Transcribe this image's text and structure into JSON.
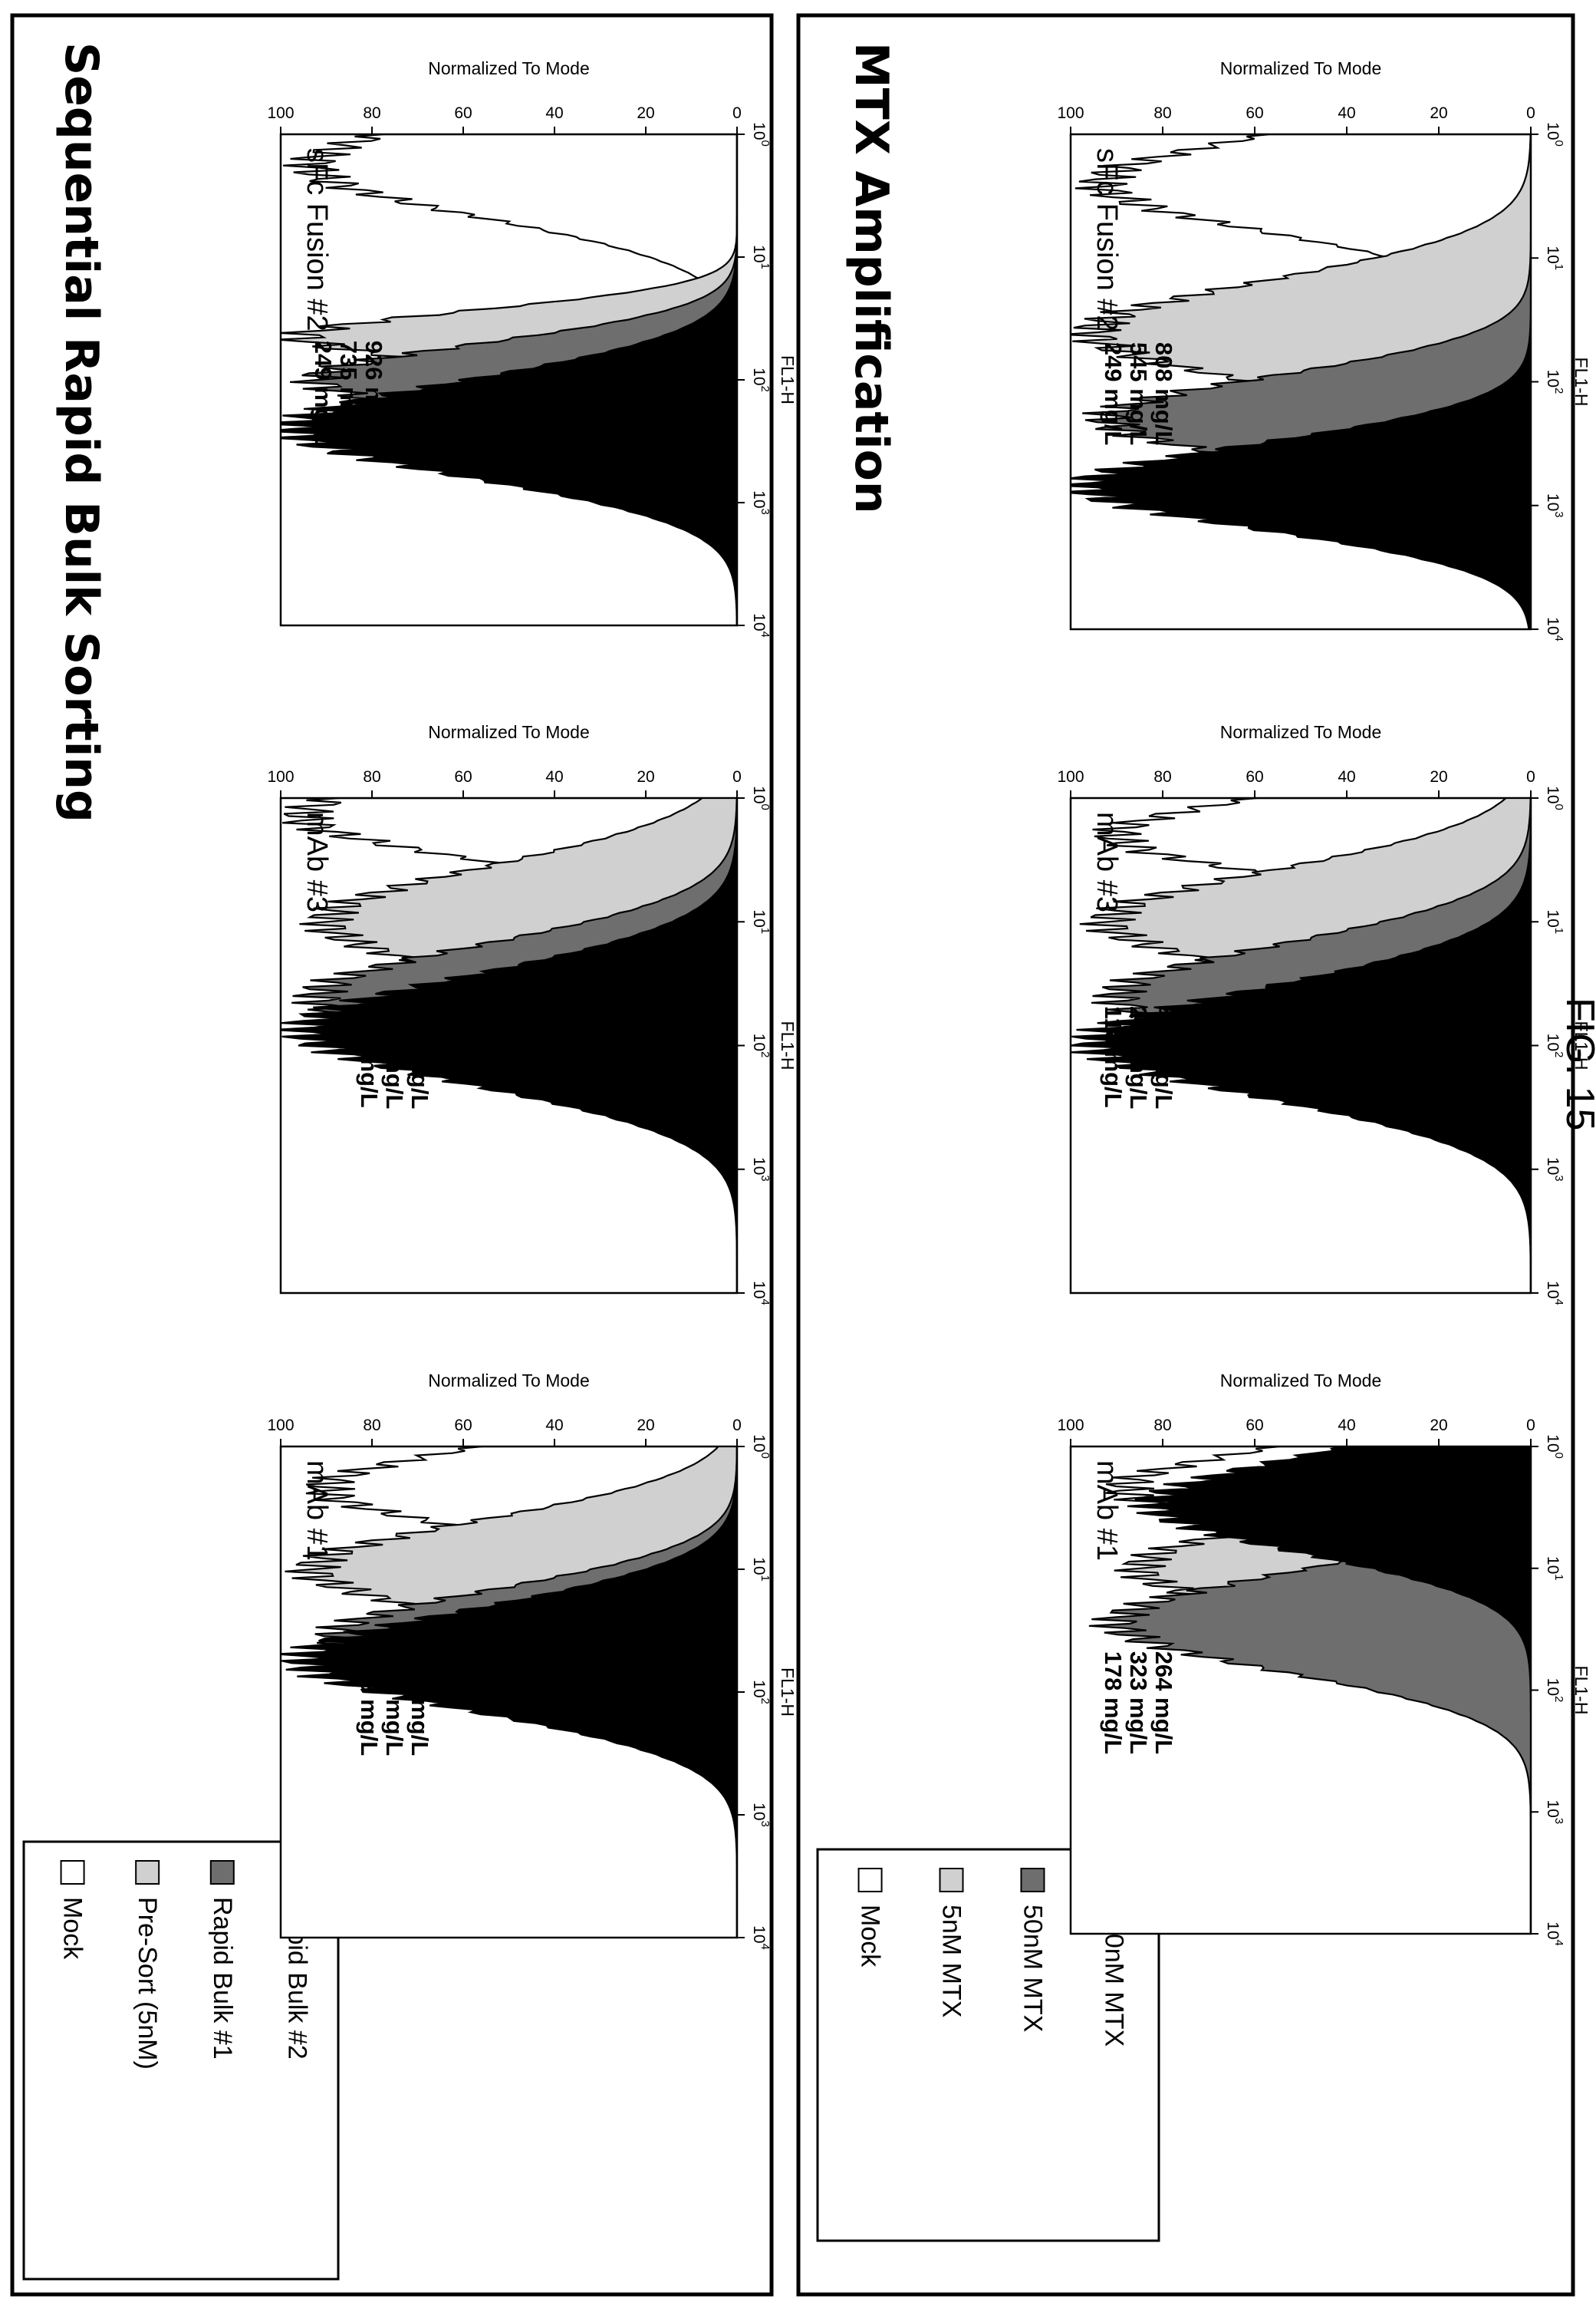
{
  "figure_label": "FIG. 15",
  "chart_data": [
    {
      "section": "Sequential Rapid Bulk Sorting",
      "type": "area",
      "legend": [
        {
          "label": "Mock",
          "color": "#ffffff"
        },
        {
          "label": "Pre-Sort (5nM)",
          "color": "#d0d0d0"
        },
        {
          "label": "Rapid Bulk #1",
          "color": "#6e6e6e"
        },
        {
          "label": "Rapid Bulk #2",
          "color": "#000000"
        }
      ],
      "panels": [
        {
          "title": "sFc Fusion #2",
          "annotations": [
            "249 mg/L",
            "735 mg/L",
            "926 mg/L"
          ],
          "xlabel": "FL1-H",
          "ylabel": "Normalized To Mode",
          "xscale": "log",
          "xlim": [
            1,
            10000
          ],
          "ylim": [
            0,
            100
          ],
          "xticks": [
            "10",
            "10",
            "10",
            "10",
            "10"
          ],
          "xtick_exps": [
            "0",
            "1",
            "2",
            "3",
            "4"
          ],
          "yticks": [
            "0",
            "20",
            "40",
            "60",
            "80",
            "100"
          ],
          "series": [
            {
              "name": "Mock",
              "color": "#ffffff",
              "peak_x": 1.8,
              "width": 0.42,
              "peak_y": 93
            },
            {
              "name": "Pre-Sort (5nM)",
              "color": "#d0d0d0",
              "peak_x": 45,
              "width": 0.22,
              "peak_y": 95
            },
            {
              "name": "Rapid Bulk #1",
              "color": "#6e6e6e",
              "peak_x": 100,
              "width": 0.3,
              "peak_y": 92
            },
            {
              "name": "Rapid Bulk #2",
              "color": "#000000",
              "peak_x": 250,
              "width": 0.4,
              "peak_y": 97
            }
          ]
        },
        {
          "title": "mAb #3",
          "annotations": [
            "118 mg/L",
            "285 mg/L",
            "571 mg/L"
          ],
          "xlabel": "FL1-H",
          "ylabel": "Normalized To Mode",
          "xscale": "log",
          "xlim": [
            1,
            10000
          ],
          "ylim": [
            0,
            100
          ],
          "xticks": [
            "10",
            "10",
            "10",
            "10",
            "10"
          ],
          "xtick_exps": [
            "0",
            "1",
            "2",
            "3",
            "4"
          ],
          "yticks": [
            "0",
            "20",
            "40",
            "60",
            "80",
            "100"
          ],
          "series": [
            {
              "name": "Mock",
              "color": "#ffffff",
              "peak_x": 1.4,
              "width": 0.35,
              "peak_y": 95
            },
            {
              "name": "Pre-Sort (5nM)",
              "color": "#d0d0d0",
              "peak_x": 10,
              "width": 0.45,
              "peak_y": 90
            },
            {
              "name": "Rapid Bulk #1",
              "color": "#6e6e6e",
              "peak_x": 40,
              "width": 0.42,
              "peak_y": 92
            },
            {
              "name": "Rapid Bulk #2",
              "color": "#000000",
              "peak_x": 75,
              "width": 0.45,
              "peak_y": 95
            }
          ]
        },
        {
          "title": "mAb #1",
          "annotations": [
            "178 mg/L",
            "355 mg/L",
            "429 mg/L"
          ],
          "xlabel": "FL1-H",
          "ylabel": "Normalized To Mode",
          "xscale": "log",
          "xlim": [
            1,
            10000
          ],
          "ylim": [
            0,
            100
          ],
          "xticks": [
            "10",
            "10",
            "10",
            "10",
            "10"
          ],
          "xtick_exps": [
            "0",
            "1",
            "2",
            "3",
            "4"
          ],
          "yticks": [
            "0",
            "20",
            "40",
            "60",
            "80",
            "100"
          ],
          "series": [
            {
              "name": "Mock",
              "color": "#ffffff",
              "peak_x": 2.2,
              "width": 0.35,
              "peak_y": 90
            },
            {
              "name": "Pre-Sort (5nM)",
              "color": "#d0d0d0",
              "peak_x": 10,
              "width": 0.4,
              "peak_y": 93
            },
            {
              "name": "Rapid Bulk #1",
              "color": "#6e6e6e",
              "peak_x": 35,
              "width": 0.38,
              "peak_y": 88
            },
            {
              "name": "Rapid Bulk #2",
              "color": "#000000",
              "peak_x": 55,
              "width": 0.42,
              "peak_y": 95
            }
          ]
        }
      ]
    },
    {
      "section": "MTX Amplification",
      "type": "area",
      "legend": [
        {
          "label": "Mock",
          "color": "#ffffff"
        },
        {
          "label": "5nM MTX",
          "color": "#d0d0d0"
        },
        {
          "label": "50nM MTX",
          "color": "#6e6e6e"
        },
        {
          "label": "250nM MTX",
          "color": "#000000"
        }
      ],
      "panels": [
        {
          "title": "sFc Fusion #2",
          "annotations": [
            "249 mg/L",
            "545 mg/L",
            "808 mg/L"
          ],
          "xlabel": "FL1-H",
          "ylabel": "Normalized To Mode",
          "xscale": "log",
          "xlim": [
            1,
            10000
          ],
          "ylim": [
            0,
            100
          ],
          "xticks": [
            "10",
            "10",
            "10",
            "10",
            "10"
          ],
          "xtick_exps": [
            "0",
            "1",
            "2",
            "3",
            "4"
          ],
          "yticks": [
            "0",
            "20",
            "40",
            "60",
            "80",
            "100"
          ],
          "series": [
            {
              "name": "Mock",
              "color": "#ffffff",
              "peak_x": 2.5,
              "width": 0.4,
              "peak_y": 93
            },
            {
              "name": "5nM MTX",
              "color": "#d0d0d0",
              "peak_x": 40,
              "width": 0.42,
              "peak_y": 95
            },
            {
              "name": "50nM MTX",
              "color": "#6e6e6e",
              "peak_x": 200,
              "width": 0.35,
              "peak_y": 92
            },
            {
              "name": "250nM MTX",
              "color": "#000000",
              "peak_x": 700,
              "width": 0.35,
              "peak_y": 97
            }
          ]
        },
        {
          "title": "mAb #3",
          "annotations": [
            "118 mg/L",
            "275 mg/L",
            "446 mg/L"
          ],
          "xlabel": "FL1-H",
          "ylabel": "Normalized To Mode",
          "xscale": "log",
          "xlim": [
            1,
            10000
          ],
          "ylim": [
            0,
            100
          ],
          "xticks": [
            "10",
            "10",
            "10",
            "10",
            "10"
          ],
          "xtick_exps": [
            "0",
            "1",
            "2",
            "3",
            "4"
          ],
          "yticks": [
            "0",
            "20",
            "40",
            "60",
            "80",
            "100"
          ],
          "series": [
            {
              "name": "Mock",
              "color": "#ffffff",
              "peak_x": 2.0,
              "width": 0.33,
              "peak_y": 90
            },
            {
              "name": "5nM MTX",
              "color": "#d0d0d0",
              "peak_x": 10,
              "width": 0.42,
              "peak_y": 92
            },
            {
              "name": "50nM MTX",
              "color": "#6e6e6e",
              "peak_x": 40,
              "width": 0.42,
              "peak_y": 90
            },
            {
              "name": "250nM MTX",
              "color": "#000000",
              "peak_x": 95,
              "width": 0.45,
              "peak_y": 95
            }
          ]
        },
        {
          "title": "mAb #1",
          "annotations": [
            "178 mg/L",
            "323 mg/L",
            "264 mg/L"
          ],
          "xlabel": "FL1-H",
          "ylabel": "Normalized To Mode",
          "xscale": "log",
          "xlim": [
            1,
            10000
          ],
          "ylim": [
            0,
            100
          ],
          "xticks": [
            "10",
            "10",
            "10",
            "10",
            "10"
          ],
          "xtick_exps": [
            "0",
            "1",
            "2",
            "3",
            "4"
          ],
          "yticks": [
            "0",
            "20",
            "40",
            "60",
            "80",
            "100"
          ],
          "series": [
            {
              "name": "Mock",
              "color": "#ffffff",
              "peak_x": 2.2,
              "width": 0.35,
              "peak_y": 88
            },
            {
              "name": "5nM MTX",
              "color": "#d0d0d0",
              "peak_x": 10,
              "width": 0.4,
              "peak_y": 85
            },
            {
              "name": "50nM MTX",
              "color": "#6e6e6e",
              "peak_x": 28,
              "width": 0.4,
              "peak_y": 90
            },
            {
              "name": "250nM MTX",
              "color": "#000000",
              "peak_x": 3.0,
              "width": 0.4,
              "peak_y": 82
            }
          ]
        }
      ]
    }
  ]
}
